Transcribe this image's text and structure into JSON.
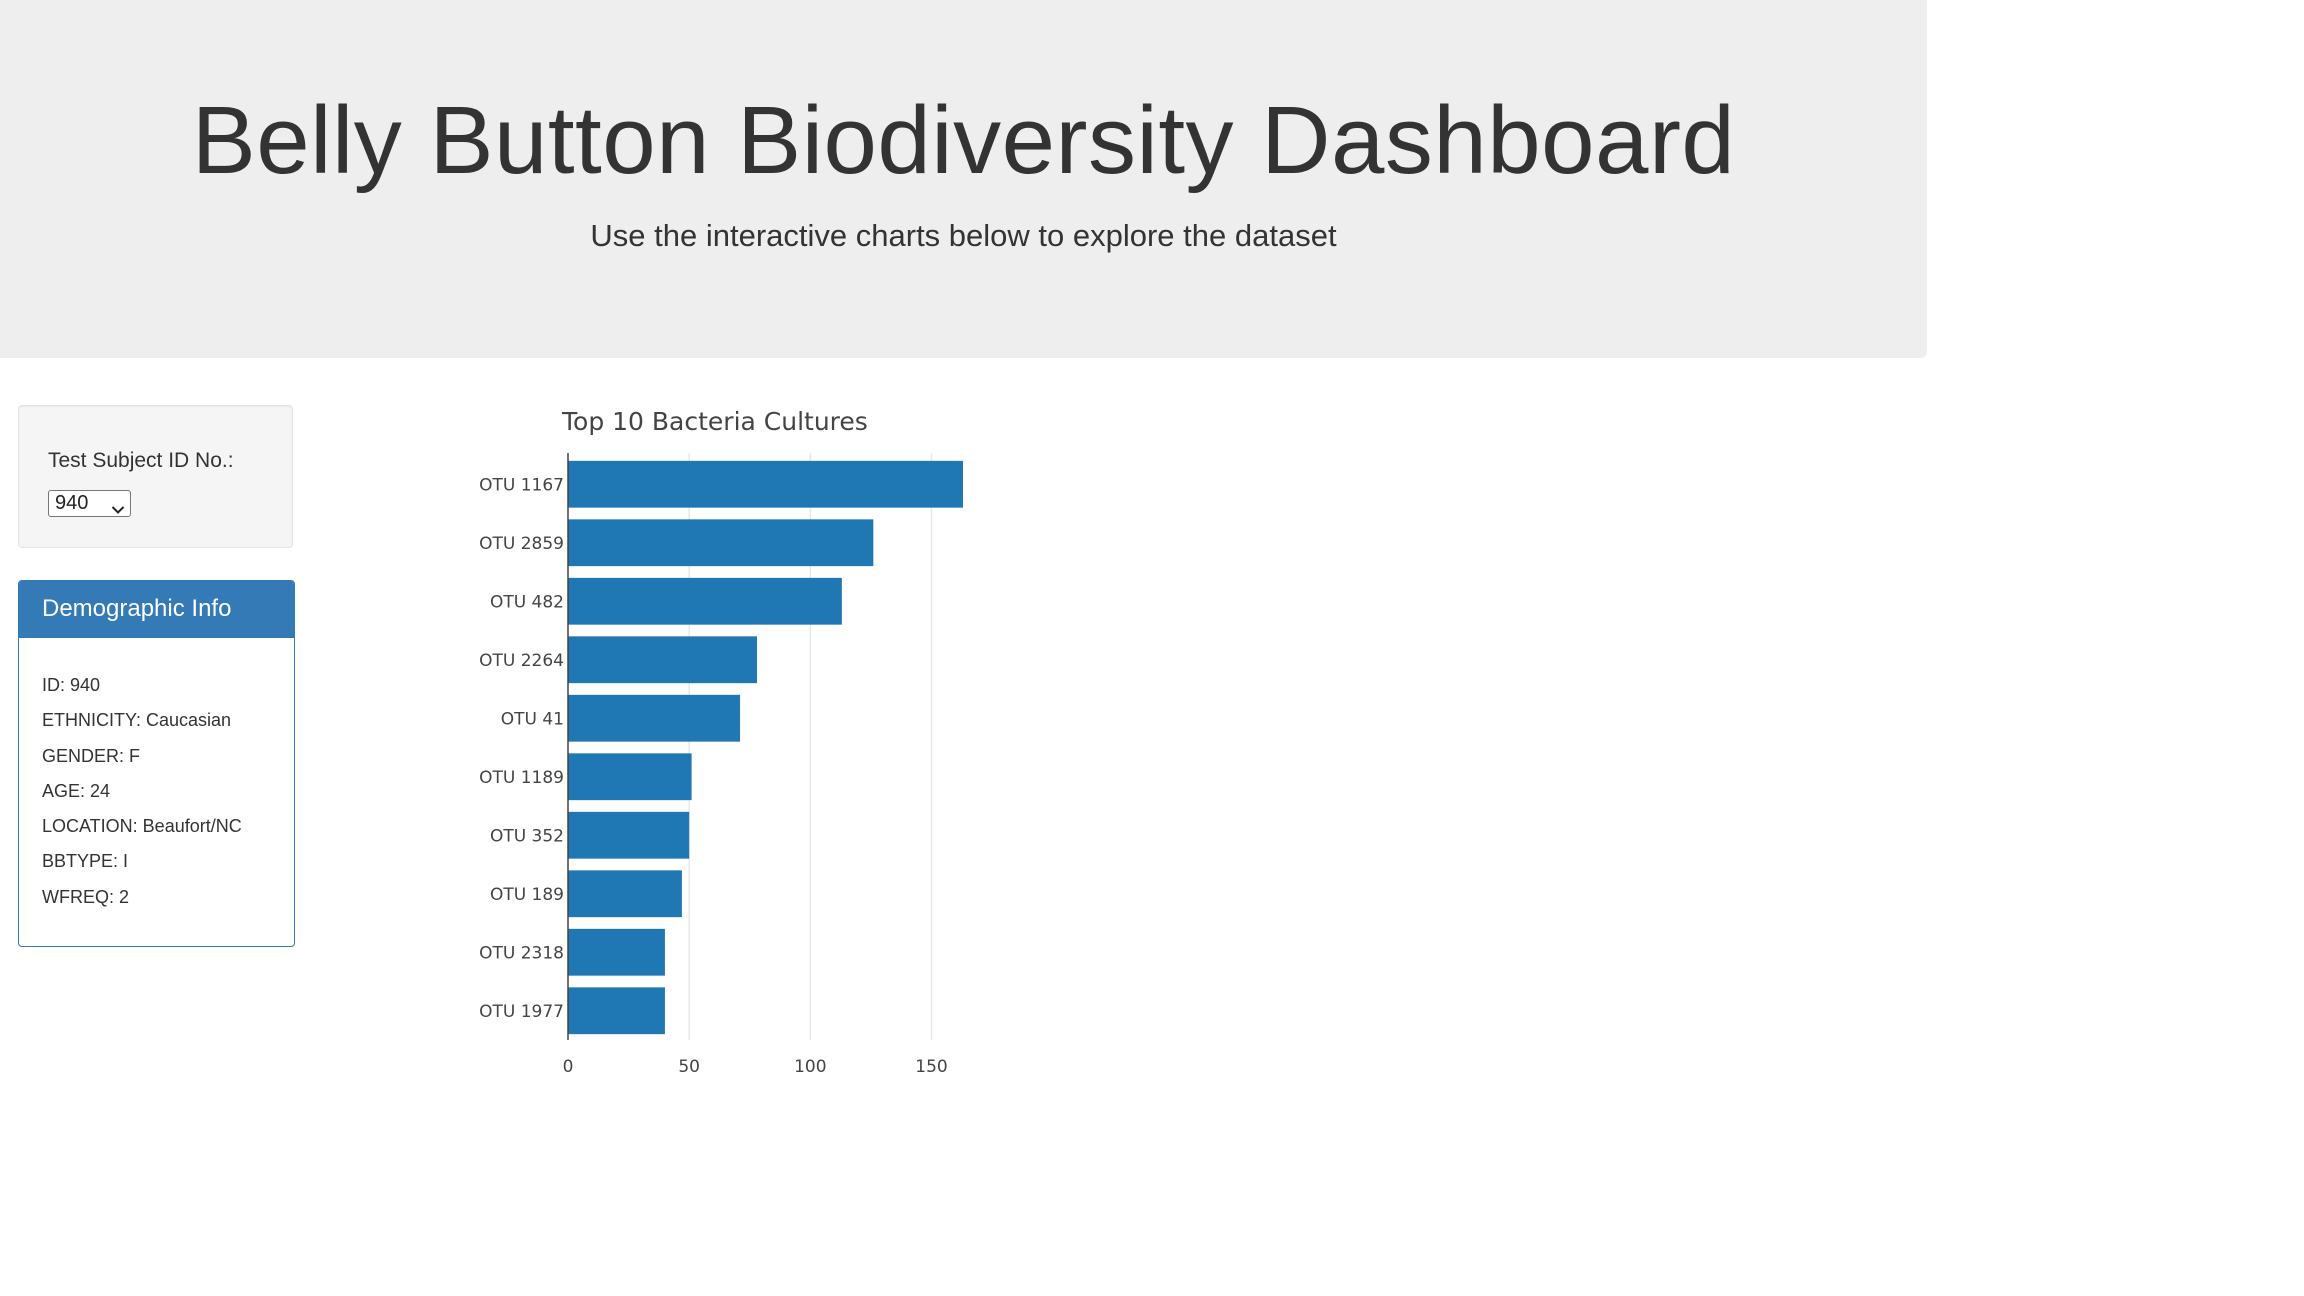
{
  "header": {
    "title": "Belly Button Biodiversity Dashboard",
    "subtitle": "Use the interactive charts below to explore the dataset"
  },
  "selector": {
    "label": "Test Subject ID No.:",
    "selected": "940",
    "icon": "chevron-down-icon"
  },
  "demographic": {
    "title": "Demographic Info",
    "rows": [
      "ID: 940",
      "ETHNICITY: Caucasian",
      "GENDER: F",
      "AGE: 24",
      "LOCATION: Beaufort/NC",
      "BBTYPE: I",
      "WFREQ: 2"
    ]
  },
  "colors": {
    "accent": "#337ab7",
    "bar": "#1f77b4",
    "jumbotron": "#eeeeee"
  },
  "chart_data": {
    "type": "bar",
    "orientation": "horizontal",
    "title": "Top 10 Bacteria Cultures",
    "categories": [
      "OTU 1167",
      "OTU 2859",
      "OTU 482",
      "OTU 2264",
      "OTU 41",
      "OTU 1189",
      "OTU 352",
      "OTU 189",
      "OTU 2318",
      "OTU 1977"
    ],
    "values": [
      163,
      126,
      113,
      78,
      71,
      51,
      50,
      47,
      40,
      40
    ],
    "xticks": [
      "0",
      "50",
      "100",
      "150"
    ],
    "xlim": [
      0,
      163
    ],
    "grid": true,
    "color": "#1f77b4"
  }
}
